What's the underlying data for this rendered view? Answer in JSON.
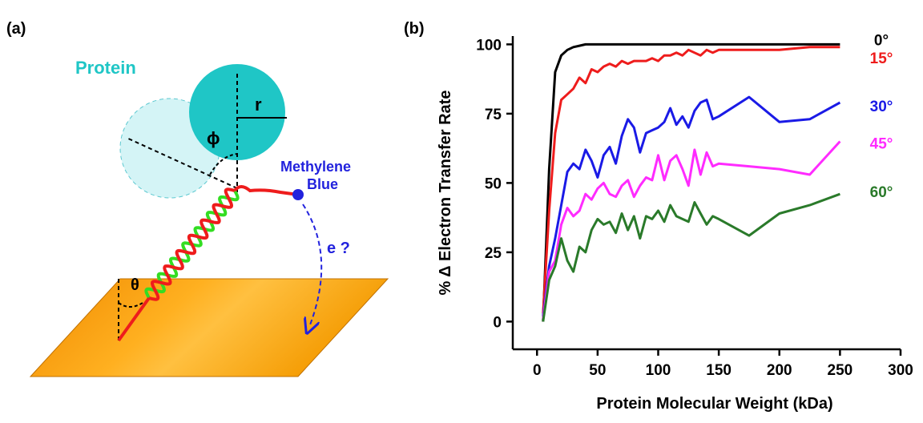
{
  "figure": {
    "panel_a": {
      "label": "(a)",
      "protein": "Protein",
      "radius": "r",
      "phi": "ϕ",
      "reporter": [
        "Methylene",
        "Blue"
      ],
      "electron": "e ?",
      "theta": "θ"
    },
    "panel_b": {
      "label": "(b)"
    }
  },
  "chart_data": {
    "type": "line",
    "x_label": "Protein Molecular Weight (kDa)",
    "y_label": "% Δ Electron Transfer Rate",
    "x": [
      5,
      10,
      15,
      20,
      25,
      30,
      35,
      40,
      45,
      50,
      55,
      60,
      65,
      70,
      75,
      80,
      85,
      90,
      95,
      100,
      105,
      110,
      115,
      120,
      125,
      130,
      135,
      140,
      145,
      150,
      175,
      200,
      225,
      250
    ],
    "series": [
      {
        "name": "0°",
        "color": "#000000",
        "values": [
          0,
          55,
          90,
          96,
          98,
          99,
          99.5,
          100,
          100,
          100,
          100,
          100,
          100,
          100,
          100,
          100,
          100,
          100,
          100,
          100,
          100,
          100,
          100,
          100,
          100,
          100,
          100,
          100,
          100,
          100,
          100,
          100,
          100,
          100
        ]
      },
      {
        "name": "15°",
        "color": "#ee1c1c",
        "values": [
          3,
          40,
          68,
          80,
          82,
          84,
          88,
          86,
          91,
          90,
          92,
          93,
          92,
          94,
          93,
          94,
          94,
          94,
          95,
          94,
          96,
          96,
          97,
          96,
          98,
          97,
          96,
          98,
          97,
          98,
          98,
          98,
          99,
          99
        ]
      },
      {
        "name": "30°",
        "color": "#1a1ae6",
        "values": [
          2,
          20,
          30,
          42,
          54,
          57,
          55,
          62,
          58,
          52,
          60,
          63,
          57,
          67,
          73,
          70,
          61,
          68,
          69,
          70,
          72,
          77,
          71,
          74,
          70,
          76,
          79,
          80,
          73,
          74,
          81,
          72,
          73,
          79
        ]
      },
      {
        "name": "45°",
        "color": "#ff2bff",
        "values": [
          1,
          18,
          22,
          35,
          41,
          38,
          40,
          46,
          44,
          48,
          50,
          46,
          45,
          49,
          51,
          45,
          49,
          52,
          51,
          60,
          51,
          58,
          60,
          55,
          49,
          62,
          53,
          61,
          56,
          57,
          56,
          55,
          53,
          65
        ]
      },
      {
        "name": "60°",
        "color": "#2a7a2a",
        "values": [
          0,
          15,
          20,
          30,
          22,
          18,
          27,
          25,
          33,
          37,
          35,
          36,
          32,
          39,
          33,
          38,
          30,
          38,
          37,
          40,
          36,
          42,
          38,
          37,
          36,
          43,
          39,
          35,
          38,
          37,
          31,
          39,
          42,
          46
        ]
      }
    ],
    "xlim": [
      -20,
      300
    ],
    "ylim": [
      -10,
      103
    ],
    "xticks": [
      0,
      50,
      100,
      150,
      200,
      250,
      300
    ],
    "yticks": [
      0,
      25,
      50,
      75,
      100
    ],
    "grid": false
  }
}
